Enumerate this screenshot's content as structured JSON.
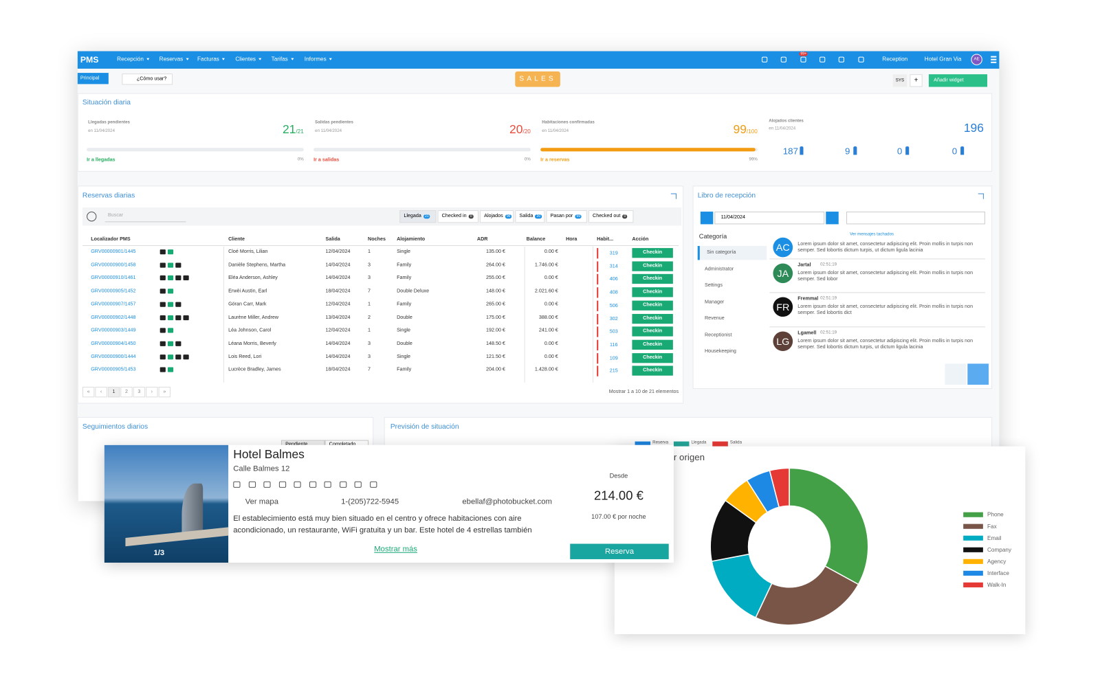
{
  "nav": {
    "brand": "PMS",
    "menu": [
      "Recepción",
      "Reservas",
      "Facturas",
      "Clientes",
      "Tarifas",
      "Informes"
    ],
    "badge": "99+",
    "module": "Reception",
    "hotel": "Hotel Gran Via",
    "user": "AE"
  },
  "toolbar": {
    "tab": "Principal",
    "help": "¿Cómo usar?",
    "sales": "SALES",
    "sys": "SYS",
    "plus": "+",
    "add_widget": "Añadir widget"
  },
  "situacion": {
    "title": "Situación diaria",
    "cards": [
      {
        "label": "Llegadas pendientes",
        "date": "en 11/04/2024",
        "value": "21",
        "total": "/21",
        "link": "Ir a llegadas",
        "pct": "0%"
      },
      {
        "label": "Salidas pendientes",
        "date": "en 11/04/2024",
        "value": "20",
        "total": "/20",
        "link": "Ir a salidas",
        "pct": "0%"
      },
      {
        "label": "Habitaciones confirmadas",
        "date": "en 11/04/2024",
        "value": "99",
        "total": "/100",
        "link": "Ir a reservas",
        "pct": "99%"
      }
    ],
    "alojados": {
      "label": "Alojados clientes",
      "date": "en 11/04/2024",
      "value": "196",
      "counts": [
        "187",
        "9",
        "0",
        "0"
      ]
    }
  },
  "reservas": {
    "title": "Reservas diarias",
    "search": "Buscar",
    "filters": [
      {
        "label": "Llegada",
        "count": "21"
      },
      {
        "label": "Checked in",
        "count": "0"
      },
      {
        "label": "Alojados",
        "count": "96"
      },
      {
        "label": "Salida",
        "count": "20"
      },
      {
        "label": "Pasan por",
        "count": "99"
      },
      {
        "label": "Checked out",
        "count": "0"
      }
    ],
    "headers": [
      "Localizador PMS",
      "Cliente",
      "Salida",
      "Noches",
      "Alojamiento",
      "ADR",
      "Balance",
      "Hora",
      "Habit...",
      "Acción"
    ],
    "rows": [
      [
        "GRV00000901/1445",
        "Cloé Morris, Lilian",
        "12/04/2024",
        "1",
        "Single",
        "135.00 €",
        "0.00 €",
        "",
        "319",
        "Checkin"
      ],
      [
        "GRV00000900/1458",
        "Danièle Stephens, Martha",
        "14/04/2024",
        "3",
        "Family",
        "264.00 €",
        "1.746.00 €",
        "",
        "314",
        "Checkin"
      ],
      [
        "GRV00000910/1461",
        "Eléa Anderson, Ashley",
        "14/04/2024",
        "3",
        "Family",
        "255.00 €",
        "0.00 €",
        "",
        "406",
        "Checkin"
      ],
      [
        "GRV00000905/1452",
        "Erwèi Austin, Earl",
        "18/04/2024",
        "7",
        "Double Deluxe",
        "148.00 €",
        "2.021.60 €",
        "",
        "408",
        "Checkin"
      ],
      [
        "GRV00000907/1457",
        "Göran Carr, Mark",
        "12/04/2024",
        "1",
        "Family",
        "265.00 €",
        "0.00 €",
        "",
        "506",
        "Checkin"
      ],
      [
        "GRV00000902/1448",
        "Laurène Miller, Andrew",
        "13/04/2024",
        "2",
        "Double",
        "175.00 €",
        "388.00 €",
        "",
        "302",
        "Checkin"
      ],
      [
        "GRV00000903/1449",
        "Léa Johnson, Carol",
        "12/04/2024",
        "1",
        "Single",
        "192.00 €",
        "241.00 €",
        "",
        "503",
        "Checkin"
      ],
      [
        "GRV00000904/1450",
        "Léana Morris, Beverly",
        "14/04/2024",
        "3",
        "Double",
        "148.50 €",
        "0.00 €",
        "",
        "116",
        "Checkin"
      ],
      [
        "GRV00000900/1444",
        "Lois Reed, Lori",
        "14/04/2024",
        "3",
        "Single",
        "121.50 €",
        "0.00 €",
        "",
        "109",
        "Checkin"
      ],
      [
        "GRV00000905/1453",
        "Lucrèce Bradley, James",
        "18/04/2024",
        "7",
        "Family",
        "204.00 €",
        "1.428.00 €",
        "",
        "215",
        "Checkin"
      ]
    ],
    "pagination": [
      "«",
      "‹",
      "1",
      "2",
      "3",
      "›",
      "»"
    ],
    "footer": "Mostrar 1 a 10 de 21 elementos"
  },
  "libro": {
    "title": "Libro de recepción",
    "date": "11/04/2024",
    "category_title": "Categoría",
    "categories": [
      "Sin categoría",
      "Administrator",
      "Settings",
      "Manager",
      "Revenue",
      "Receptionist",
      "Housekeeping"
    ],
    "struck": "Ver mensajes tachados",
    "messages": [
      {
        "avatar": "AC",
        "name": "",
        "time": "",
        "text": "Lorem ipsum dolor sit amet, consectetur adipiscing elit. Proin mollis in turpis non semper. Sed lobortis dictum turpis, ut dictum ligula lacinia"
      },
      {
        "avatar": "JA",
        "name": "Jartal",
        "time": "02:51:19",
        "text": "Lorem ipsum dolor sit amet, consectetur adipiscing elit. Proin mollis in turpis non semper. Sed lobor"
      },
      {
        "avatar": "FR",
        "name": "Fremmal",
        "time": "02:51:19",
        "text": "Lorem ipsum dolor sit amet, consectetur adipiscing elit. Proin mollis in turpis non semper. Sed lobortis dict"
      },
      {
        "avatar": "LG",
        "name": "Lgamell",
        "time": "02:51:19",
        "text": "Lorem ipsum dolor sit amet, consectetur adipiscing elit. Proin mollis in turpis non semper. Sed lobortis dictum turpis, ut dictum ligula lacinia"
      }
    ]
  },
  "seguimientos": {
    "title": "Seguimientos diarios",
    "tabs": [
      "Pendiente",
      "Completado"
    ]
  },
  "prevision": {
    "title": "Previsión de situación",
    "legend": [
      "Reserva",
      "Llegada",
      "Salida"
    ]
  },
  "hotel": {
    "name": "Hotel Balmes",
    "address": "Calle Balmes 12",
    "map": "Ver mapa",
    "phone": "1-(205)722-5945",
    "email": "ebellaf@photobucket.com",
    "description": "El establecimiento está muy bien situado en el centro y ofrece habitaciones con aire acondicionado, un restaurante, WiFi gratuita y un bar. Este hotel de 4 estrellas también",
    "more": "Mostrar más",
    "from": "Desde",
    "price": "214.00 €",
    "per_night": "107.00 € por noche",
    "book": "Reserva",
    "photos": "1/3"
  },
  "chart_data": {
    "type": "pie",
    "title": "r origen",
    "categories": [
      "Phone",
      "Fax",
      "Email",
      "Company",
      "Agency",
      "Interface",
      "Walk-In"
    ],
    "values": [
      33,
      24,
      15,
      13,
      6,
      5,
      4
    ],
    "colors": [
      "#43a047",
      "#795548",
      "#00acc1",
      "#111111",
      "#ffb300",
      "#1e88e5",
      "#e53935"
    ],
    "donut": true,
    "legend": "right"
  }
}
